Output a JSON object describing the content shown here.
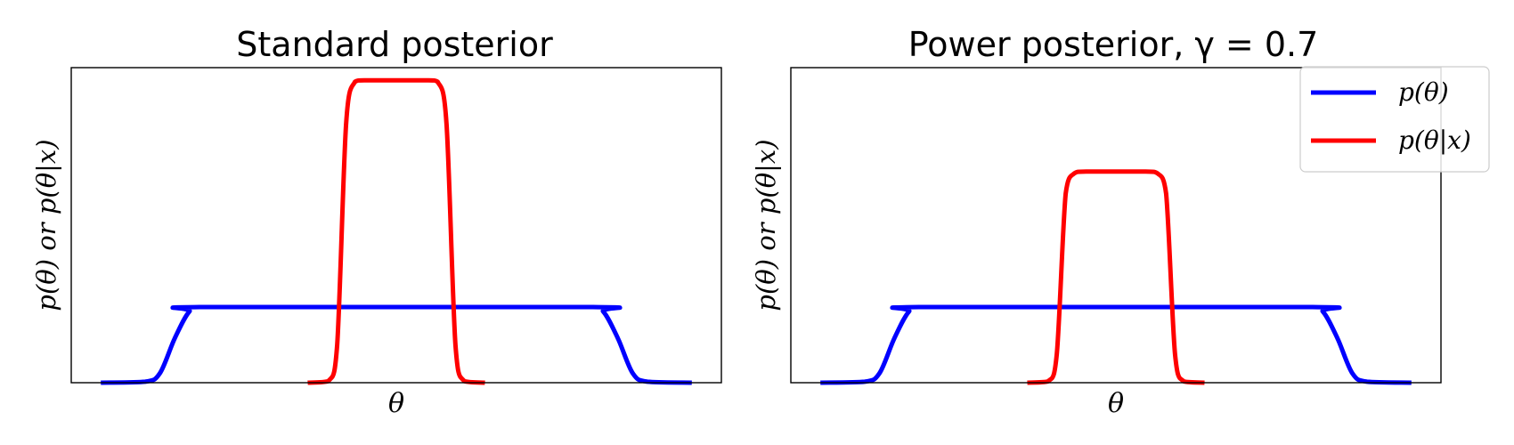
{
  "chart_data": [
    {
      "type": "line",
      "title": "Standard posterior",
      "xlabel": "θ",
      "ylabel": "p(θ) or p(θ|x)",
      "xlim": [
        -1.1,
        1.1
      ],
      "ylim": [
        0,
        1.0
      ],
      "grid": false,
      "ticks": false,
      "series": [
        {
          "name": "p(θ)",
          "color": "#0000ff",
          "x": [
            -1.0,
            -0.85,
            -0.8,
            -0.75,
            -0.7,
            -0.65,
            0.65,
            0.7,
            0.75,
            0.8,
            0.85,
            1.0
          ],
          "y": [
            0.0,
            0.003,
            0.03,
            0.14,
            0.226,
            0.24,
            0.24,
            0.226,
            0.14,
            0.03,
            0.003,
            0.0
          ]
        },
        {
          "name": "p(θ|x)",
          "color": "#ff0000",
          "x": [
            -0.3,
            -0.23,
            -0.2,
            -0.17,
            -0.14,
            -0.1,
            0.1,
            0.14,
            0.17,
            0.2,
            0.23,
            0.3
          ],
          "y": [
            0.0,
            0.005,
            0.12,
            0.82,
            0.955,
            0.96,
            0.96,
            0.955,
            0.82,
            0.12,
            0.005,
            0.0
          ]
        }
      ]
    },
    {
      "type": "line",
      "title": "Power posterior, γ = 0.7",
      "xlabel": "θ",
      "ylabel": "p(θ) or p(θ|x)",
      "xlim": [
        -1.1,
        1.1
      ],
      "ylim": [
        0,
        1.0
      ],
      "grid": false,
      "ticks": false,
      "legend": "top-right",
      "series": [
        {
          "name": "p(θ)",
          "color": "#0000ff",
          "x": [
            -1.0,
            -0.85,
            -0.8,
            -0.75,
            -0.7,
            -0.65,
            0.65,
            0.7,
            0.75,
            0.8,
            0.85,
            1.0
          ],
          "y": [
            0.0,
            0.003,
            0.03,
            0.14,
            0.226,
            0.24,
            0.24,
            0.226,
            0.14,
            0.03,
            0.003,
            0.0
          ]
        },
        {
          "name": "p(θ|x)",
          "color": "#ff0000",
          "x": [
            -0.3,
            -0.23,
            -0.2,
            -0.17,
            -0.14,
            -0.1,
            0.1,
            0.14,
            0.17,
            0.2,
            0.23,
            0.3
          ],
          "y": [
            0.0,
            0.004,
            0.09,
            0.6,
            0.665,
            0.67,
            0.67,
            0.665,
            0.6,
            0.09,
            0.004,
            0.0
          ]
        }
      ]
    }
  ]
}
